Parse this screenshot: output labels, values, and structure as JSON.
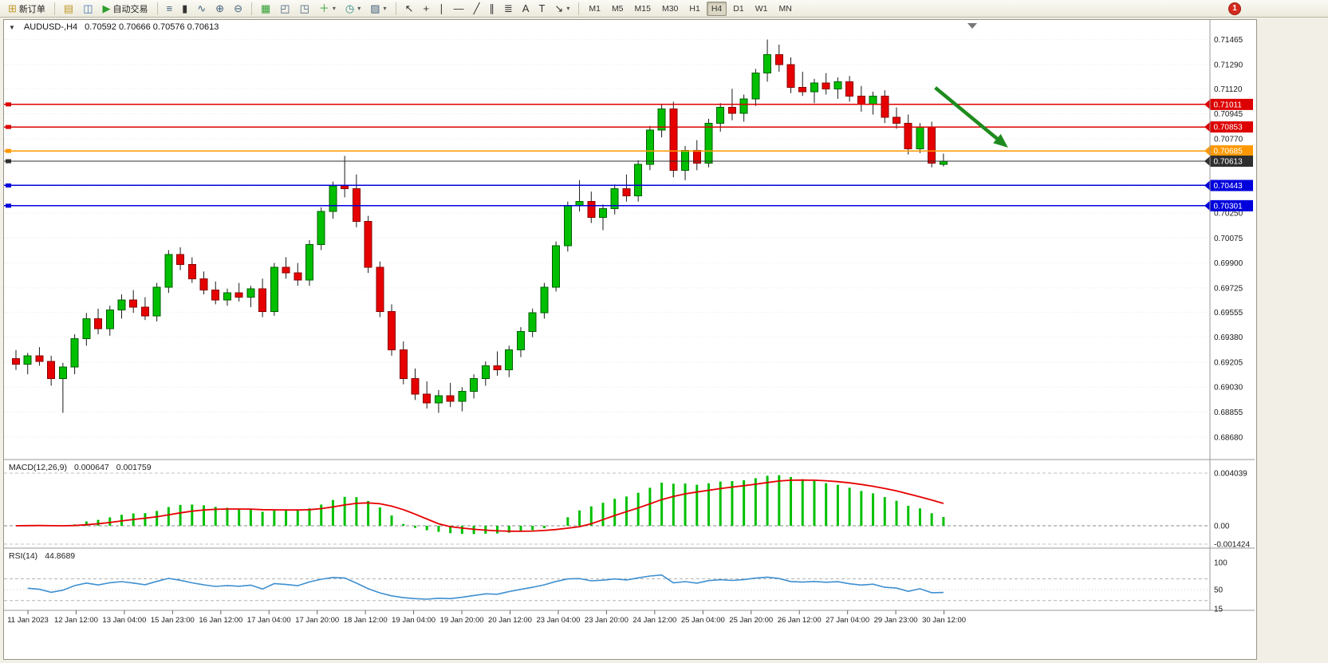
{
  "toolbar": {
    "new_order_label": "新订单",
    "auto_trading_label": "自动交易",
    "icons": {
      "new_order": "⊞",
      "profiles": "▤",
      "navigator": "◫",
      "auto_trading": "▶",
      "bars": "≡",
      "candles": "▮",
      "line_chart": "∿",
      "zoom_in": "⊕",
      "zoom_out": "⊖",
      "tile_windows": "▦",
      "arrange_windows": "◰",
      "cascade_windows": "◳",
      "indicators": "＋",
      "periods": "◷",
      "templates": "▨",
      "cursor": "↖",
      "crosshair": "+",
      "vertical_line": "∣",
      "horizontal_line": "—",
      "trendline": "╱",
      "channel": "∥",
      "fibonacci": "≣",
      "text": "A",
      "text_label": "T",
      "arrows": "↘",
      "dropdown": "▾"
    },
    "timeframes": [
      "M1",
      "M5",
      "M15",
      "M30",
      "H1",
      "H4",
      "D1",
      "W1",
      "MN"
    ],
    "active_timeframe": "H4",
    "notification_badge": "1"
  },
  "chart": {
    "dropdown_glyph": "▼",
    "symbol_title": "AUDUSD-,H4",
    "ohlc_text": "0.70592 0.70666 0.70576 0.70613",
    "macd_label": "MACD(12,26,9)",
    "macd_value": "0.000647",
    "macd_signal_value": "0.001759",
    "rsi_label": "RSI(14)",
    "rsi_value": "44.8689"
  },
  "chart_data": {
    "type": "candlestick",
    "symbol": "AUDUSD",
    "timeframe": "H4",
    "current_ohlc": {
      "open": 0.70592,
      "high": 0.70666,
      "low": 0.70576,
      "close": 0.70613
    },
    "price_axis": {
      "max": 0.71558,
      "min": 0.68528,
      "labels": [
        "0.71465",
        "0.71290",
        "0.71120",
        "0.70945",
        "0.70770",
        "0.70595",
        "0.70425",
        "0.70250",
        "0.70075",
        "0.69900",
        "0.69725",
        "0.69555",
        "0.69380",
        "0.69205",
        "0.69030",
        "0.68855",
        "0.68680"
      ]
    },
    "candles": [
      [
        0.6923,
        0.6929,
        0.6915,
        0.6919
      ],
      [
        0.6919,
        0.6927,
        0.6912,
        0.6925
      ],
      [
        0.6925,
        0.6931,
        0.6918,
        0.6921
      ],
      [
        0.6921,
        0.6925,
        0.6904,
        0.6909
      ],
      [
        0.6909,
        0.692,
        0.6885,
        0.6917
      ],
      [
        0.6917,
        0.694,
        0.6912,
        0.6937
      ],
      [
        0.6937,
        0.6955,
        0.6932,
        0.6951
      ],
      [
        0.6951,
        0.6958,
        0.694,
        0.6944
      ],
      [
        0.6944,
        0.696,
        0.6939,
        0.6957
      ],
      [
        0.6957,
        0.6968,
        0.6951,
        0.6964
      ],
      [
        0.6964,
        0.6971,
        0.6955,
        0.6959
      ],
      [
        0.6959,
        0.6966,
        0.695,
        0.6953
      ],
      [
        0.6953,
        0.6976,
        0.6949,
        0.6973
      ],
      [
        0.6973,
        0.6999,
        0.6969,
        0.6996
      ],
      [
        0.6996,
        0.7001,
        0.6985,
        0.6989
      ],
      [
        0.6989,
        0.6994,
        0.6976,
        0.6979
      ],
      [
        0.6979,
        0.6984,
        0.6968,
        0.6971
      ],
      [
        0.6971,
        0.6977,
        0.6961,
        0.6964
      ],
      [
        0.6964,
        0.6972,
        0.696,
        0.6969
      ],
      [
        0.6969,
        0.6976,
        0.6963,
        0.6966
      ],
      [
        0.6966,
        0.6974,
        0.6959,
        0.6972
      ],
      [
        0.6972,
        0.6979,
        0.6952,
        0.6956
      ],
      [
        0.6956,
        0.699,
        0.6953,
        0.6987
      ],
      [
        0.6987,
        0.6994,
        0.6979,
        0.6983
      ],
      [
        0.6983,
        0.699,
        0.6974,
        0.6978
      ],
      [
        0.6978,
        0.7006,
        0.6974,
        0.7003
      ],
      [
        0.7003,
        0.7029,
        0.6999,
        0.7026
      ],
      [
        0.7026,
        0.7047,
        0.7021,
        0.7044
      ],
      [
        0.7044,
        0.7065,
        0.7036,
        0.7042
      ],
      [
        0.7042,
        0.7052,
        0.7015,
        0.7019
      ],
      [
        0.7019,
        0.7023,
        0.6983,
        0.6987
      ],
      [
        0.6987,
        0.6991,
        0.6952,
        0.6956
      ],
      [
        0.6956,
        0.6961,
        0.6925,
        0.6929
      ],
      [
        0.6929,
        0.6935,
        0.6905,
        0.6909
      ],
      [
        0.6909,
        0.6916,
        0.6894,
        0.6898
      ],
      [
        0.6898,
        0.6907,
        0.6888,
        0.6892
      ],
      [
        0.6892,
        0.6901,
        0.6885,
        0.6897
      ],
      [
        0.6897,
        0.6906,
        0.6889,
        0.6893
      ],
      [
        0.6893,
        0.6903,
        0.6886,
        0.69
      ],
      [
        0.69,
        0.6912,
        0.6895,
        0.6909
      ],
      [
        0.6909,
        0.6921,
        0.6904,
        0.6918
      ],
      [
        0.6918,
        0.6928,
        0.6911,
        0.6915
      ],
      [
        0.6915,
        0.6932,
        0.691,
        0.6929
      ],
      [
        0.6929,
        0.6945,
        0.6924,
        0.6942
      ],
      [
        0.6942,
        0.6958,
        0.6938,
        0.6955
      ],
      [
        0.6955,
        0.6976,
        0.6951,
        0.6973
      ],
      [
        0.6973,
        0.7005,
        0.697,
        0.7002
      ],
      [
        0.7002,
        0.7033,
        0.6998,
        0.703
      ],
      [
        0.703,
        0.7048,
        0.7026,
        0.7033
      ],
      [
        0.7033,
        0.704,
        0.7018,
        0.7022
      ],
      [
        0.7022,
        0.7031,
        0.7013,
        0.7028
      ],
      [
        0.7028,
        0.7045,
        0.7024,
        0.7042
      ],
      [
        0.7042,
        0.7052,
        0.7033,
        0.7037
      ],
      [
        0.7037,
        0.7062,
        0.7033,
        0.7059
      ],
      [
        0.7059,
        0.7086,
        0.7055,
        0.7083
      ],
      [
        0.7083,
        0.7101,
        0.7078,
        0.7098
      ],
      [
        0.7098,
        0.7103,
        0.705,
        0.7055
      ],
      [
        0.7055,
        0.7072,
        0.7048,
        0.7069
      ],
      [
        0.7069,
        0.7076,
        0.7055,
        0.706
      ],
      [
        0.706,
        0.7091,
        0.7057,
        0.7088
      ],
      [
        0.7088,
        0.7102,
        0.7082,
        0.7099
      ],
      [
        0.7099,
        0.7112,
        0.709,
        0.7095
      ],
      [
        0.7095,
        0.7108,
        0.7089,
        0.7105
      ],
      [
        0.7105,
        0.7126,
        0.71,
        0.7123
      ],
      [
        0.7123,
        0.71465,
        0.7117,
        0.7136
      ],
      [
        0.7136,
        0.7143,
        0.7124,
        0.7129
      ],
      [
        0.7129,
        0.7134,
        0.7109,
        0.7113
      ],
      [
        0.7113,
        0.7124,
        0.7107,
        0.711
      ],
      [
        0.711,
        0.7119,
        0.7102,
        0.7116
      ],
      [
        0.7116,
        0.7123,
        0.7108,
        0.7112
      ],
      [
        0.7112,
        0.712,
        0.7105,
        0.7117
      ],
      [
        0.7117,
        0.7121,
        0.7103,
        0.7107
      ],
      [
        0.7107,
        0.7114,
        0.7096,
        0.7101
      ],
      [
        0.7101,
        0.711,
        0.7094,
        0.7107
      ],
      [
        0.7107,
        0.7111,
        0.7088,
        0.7092
      ],
      [
        0.7092,
        0.7099,
        0.7084,
        0.7088
      ],
      [
        0.7088,
        0.7094,
        0.7066,
        0.707
      ],
      [
        0.707,
        0.7088,
        0.7067,
        0.7085
      ],
      [
        0.7085,
        0.7089,
        0.7057,
        0.706
      ],
      [
        0.70592,
        0.70666,
        0.70576,
        0.70613
      ]
    ],
    "hlines": [
      {
        "label": "0.71011",
        "price": 0.71011,
        "color": "#dd0000",
        "width": 1.5
      },
      {
        "label": "0.70853",
        "price": 0.70853,
        "color": "#dd0000",
        "width": 1.5
      },
      {
        "label": "0.70685",
        "price": 0.70685,
        "color": "#ff9800",
        "width": 1.8
      },
      {
        "label": "0.70613",
        "price": 0.70613,
        "color": "#2f2f2f",
        "width": 1.2
      },
      {
        "label": "0.70443",
        "price": 0.70443,
        "color": "#0000dd",
        "width": 1.5
      },
      {
        "label": "0.70301",
        "price": 0.70301,
        "color": "#0000dd",
        "width": 1.5
      }
    ],
    "trend_arrow": {
      "from": {
        "bar": 78.3,
        "price": 0.71128
      },
      "to": {
        "bar": 84.5,
        "price": 0.70708
      },
      "color": "#1f8b1f"
    },
    "macd": {
      "params": "12,26,9",
      "value": 0.000647,
      "signal": 0.001759,
      "axis_labels": [
        "0.004039",
        "0.00",
        "-0.001424"
      ],
      "axis_max": 0.004039,
      "axis_min": -0.001424
    },
    "rsi": {
      "period": 14,
      "value": 44.8689,
      "levels": [
        70,
        30
      ],
      "axis_labels": [
        "100",
        "50",
        "15"
      ],
      "axis_max": 100,
      "axis_min": 15
    },
    "time_labels": [
      "11 Jan 2023",
      "12 Jan 12:00",
      "13 Jan 04:00",
      "15 Jan 23:00",
      "16 Jan 12:00",
      "17 Jan 04:00",
      "17 Jan 20:00",
      "18 Jan 12:00",
      "19 Jan 04:00",
      "19 Jan 20:00",
      "20 Jan 12:00",
      "23 Jan 04:00",
      "23 Jan 20:00",
      "24 Jan 12:00",
      "25 Jan 04:00",
      "25 Jan 20:00",
      "26 Jan 12:00",
      "27 Jan 04:00",
      "29 Jan 23:00",
      "30 Jan 12:00"
    ],
    "colors": {
      "bull": "#00bf00",
      "bull_border": "#005f00",
      "bear": "#e60000",
      "bear_border": "#8b0000",
      "wick": "#1a1a1a",
      "macd_histogram": "#00c000",
      "macd_signal": "#e60000",
      "rsi_line": "#3e8fd0",
      "scale_text": "#1a1a1a",
      "grid": "#e7e7e7",
      "separator": "#9a9a9a"
    }
  }
}
